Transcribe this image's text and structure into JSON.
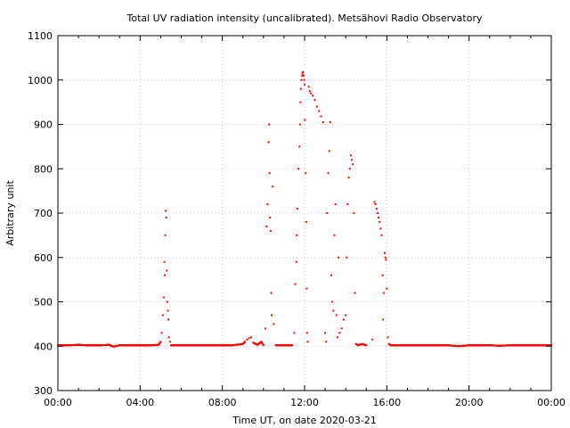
{
  "chart_data": {
    "type": "scatter",
    "title": "Total UV radiation intensity (uncalibrated). Metsähovi Radio Observatory",
    "xlabel": "Time UT, on date 2020-03-21",
    "ylabel": "Arbitrary unit",
    "xlim": [
      0,
      24
    ],
    "ylim": [
      300,
      1100
    ],
    "x_ticks": [
      0,
      4,
      8,
      12,
      16,
      20,
      24
    ],
    "x_tick_labels": [
      "00:00",
      "04:00",
      "08:00",
      "12:00",
      "16:00",
      "20:00",
      "00:00"
    ],
    "y_ticks": [
      300,
      400,
      500,
      600,
      700,
      800,
      900,
      1000,
      1100
    ],
    "y_tick_labels": [
      "300",
      "400",
      "500",
      "600",
      "700",
      "800",
      "900",
      "1000",
      "1100"
    ],
    "grid": true,
    "marker_color": "#ff0000",
    "series": [
      {
        "x_unit": "hours UT",
        "points": [
          [
            0.0,
            402
          ],
          [
            0.5,
            402
          ],
          [
            1.0,
            403
          ],
          [
            1.5,
            402
          ],
          [
            2.0,
            402
          ],
          [
            2.5,
            403
          ],
          [
            2.7,
            399
          ],
          [
            3.0,
            402
          ],
          [
            3.5,
            402
          ],
          [
            4.0,
            402
          ],
          [
            4.5,
            402
          ],
          [
            4.9,
            403
          ],
          [
            5.0,
            410
          ],
          [
            5.05,
            430
          ],
          [
            5.1,
            470
          ],
          [
            5.15,
            510
          ],
          [
            5.18,
            590
          ],
          [
            5.2,
            560
          ],
          [
            5.22,
            650
          ],
          [
            5.25,
            705
          ],
          [
            5.27,
            690
          ],
          [
            5.3,
            570
          ],
          [
            5.32,
            500
          ],
          [
            5.35,
            480
          ],
          [
            5.38,
            460
          ],
          [
            5.4,
            420
          ],
          [
            5.45,
            410
          ],
          [
            5.5,
            402
          ],
          [
            6.0,
            402
          ],
          [
            6.5,
            402
          ],
          [
            7.0,
            402
          ],
          [
            7.5,
            402
          ],
          [
            8.0,
            402
          ],
          [
            8.5,
            402
          ],
          [
            9.0,
            405
          ],
          [
            9.1,
            410
          ],
          [
            9.2,
            415
          ],
          [
            9.3,
            418
          ],
          [
            9.4,
            420
          ],
          [
            9.5,
            408
          ],
          [
            9.7,
            403
          ],
          [
            9.9,
            410
          ],
          [
            10.0,
            402
          ],
          [
            10.1,
            440
          ],
          [
            10.15,
            670
          ],
          [
            10.2,
            720
          ],
          [
            10.25,
            860
          ],
          [
            10.28,
            900
          ],
          [
            10.3,
            790
          ],
          [
            10.32,
            690
          ],
          [
            10.35,
            660
          ],
          [
            10.38,
            520
          ],
          [
            10.4,
            470
          ],
          [
            10.45,
            760
          ],
          [
            10.5,
            450
          ],
          [
            10.6,
            402
          ],
          [
            11.0,
            402
          ],
          [
            11.4,
            402
          ],
          [
            11.5,
            430
          ],
          [
            11.55,
            540
          ],
          [
            11.6,
            590
          ],
          [
            11.62,
            650
          ],
          [
            11.65,
            710
          ],
          [
            11.7,
            800
          ],
          [
            11.75,
            850
          ],
          [
            11.78,
            900
          ],
          [
            11.8,
            950
          ],
          [
            11.82,
            980
          ],
          [
            11.85,
            1000
          ],
          [
            11.88,
            1010
          ],
          [
            11.9,
            1015
          ],
          [
            11.92,
            1018
          ],
          [
            11.95,
            1010
          ],
          [
            11.98,
            1000
          ],
          [
            12.0,
            990
          ],
          [
            12.02,
            910
          ],
          [
            12.05,
            790
          ],
          [
            12.08,
            680
          ],
          [
            12.1,
            530
          ],
          [
            12.12,
            430
          ],
          [
            12.15,
            410
          ],
          [
            12.2,
            985
          ],
          [
            12.25,
            975
          ],
          [
            12.3,
            970
          ],
          [
            12.4,
            965
          ],
          [
            12.5,
            955
          ],
          [
            12.6,
            940
          ],
          [
            12.7,
            930
          ],
          [
            12.8,
            918
          ],
          [
            12.9,
            905
          ],
          [
            13.0,
            430
          ],
          [
            13.05,
            410
          ],
          [
            13.1,
            700
          ],
          [
            13.15,
            790
          ],
          [
            13.2,
            840
          ],
          [
            13.25,
            905
          ],
          [
            13.3,
            560
          ],
          [
            13.35,
            500
          ],
          [
            13.4,
            480
          ],
          [
            13.45,
            650
          ],
          [
            13.5,
            720
          ],
          [
            13.55,
            470
          ],
          [
            13.6,
            420
          ],
          [
            13.65,
            600
          ],
          [
            13.7,
            430
          ],
          [
            13.8,
            440
          ],
          [
            13.9,
            460
          ],
          [
            14.0,
            470
          ],
          [
            14.05,
            600
          ],
          [
            14.1,
            720
          ],
          [
            14.15,
            780
          ],
          [
            14.2,
            800
          ],
          [
            14.25,
            830
          ],
          [
            14.3,
            820
          ],
          [
            14.35,
            810
          ],
          [
            14.4,
            700
          ],
          [
            14.45,
            520
          ],
          [
            14.5,
            405
          ],
          [
            14.6,
            402
          ],
          [
            14.8,
            405
          ],
          [
            15.0,
            402
          ],
          [
            15.3,
            415
          ],
          [
            15.4,
            725
          ],
          [
            15.45,
            720
          ],
          [
            15.5,
            710
          ],
          [
            15.55,
            700
          ],
          [
            15.6,
            690
          ],
          [
            15.65,
            680
          ],
          [
            15.7,
            665
          ],
          [
            15.75,
            650
          ],
          [
            15.8,
            560
          ],
          [
            15.82,
            460
          ],
          [
            15.85,
            520
          ],
          [
            15.9,
            610
          ],
          [
            15.93,
            600
          ],
          [
            15.96,
            595
          ],
          [
            16.0,
            530
          ],
          [
            16.05,
            420
          ],
          [
            16.1,
            405
          ],
          [
            16.2,
            402
          ],
          [
            16.5,
            402
          ],
          [
            17.0,
            402
          ],
          [
            17.5,
            402
          ],
          [
            18.0,
            402
          ],
          [
            18.5,
            402
          ],
          [
            19.0,
            402
          ],
          [
            19.5,
            400
          ],
          [
            20.0,
            402
          ],
          [
            20.5,
            402
          ],
          [
            21.0,
            402
          ],
          [
            21.5,
            401
          ],
          [
            22.0,
            402
          ],
          [
            22.5,
            402
          ],
          [
            23.0,
            402
          ],
          [
            23.5,
            402
          ],
          [
            24.0,
            402
          ]
        ]
      }
    ]
  }
}
